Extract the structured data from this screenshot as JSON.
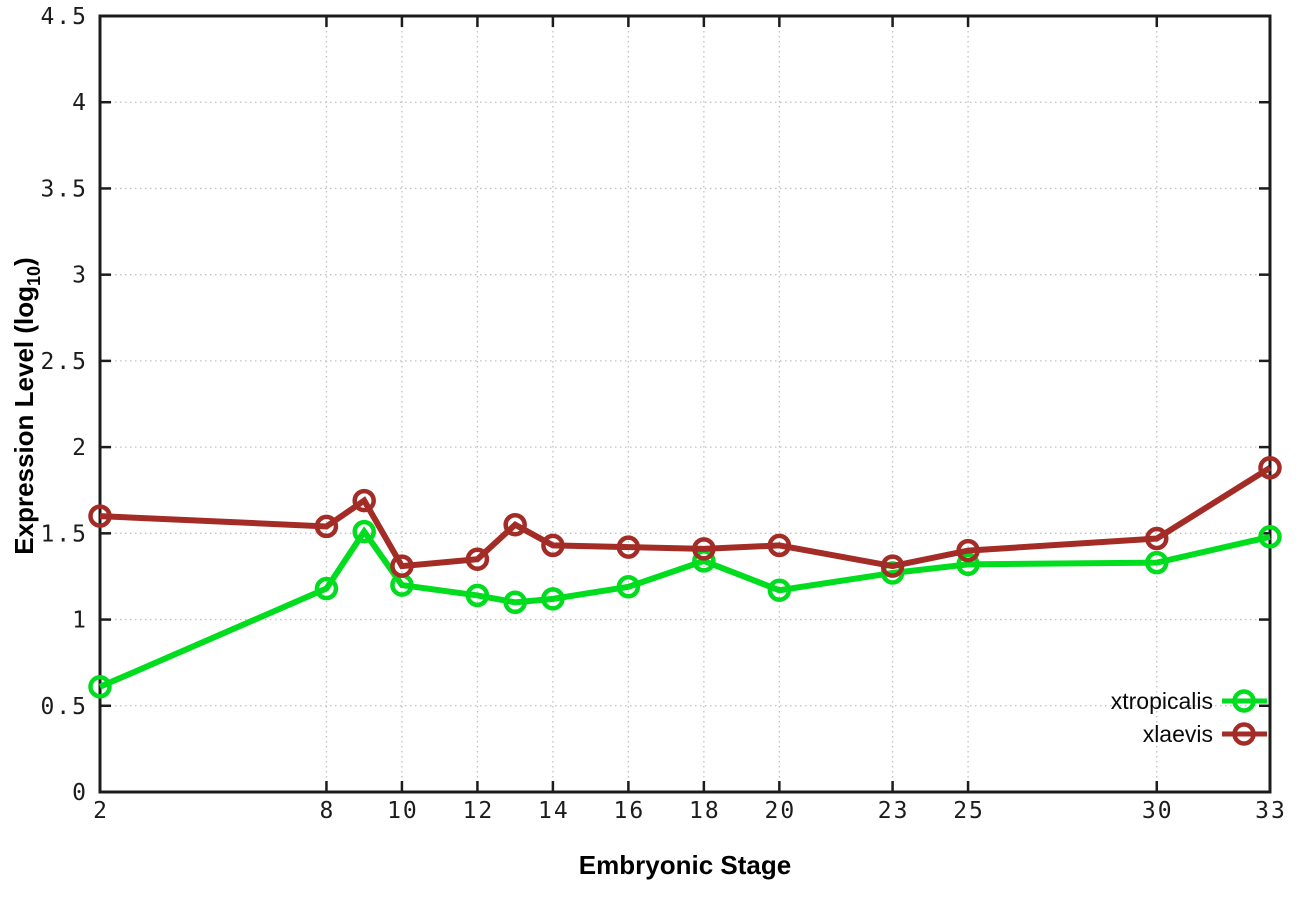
{
  "figure": {
    "background": "#ffffff",
    "axis_color": "#1c1c1c",
    "grid_color": "#c0c0c0",
    "xlabel": "Embryonic Stage",
    "ylabel": {
      "main": "Expression Level (log",
      "sub": "10",
      "suffix": ")"
    }
  },
  "chart_data": {
    "type": "line",
    "title": "",
    "xlabel": "Embryonic Stage",
    "ylabel": "Expression Level (log10)",
    "x": [
      2,
      8,
      9,
      10,
      12,
      13,
      14,
      16,
      18,
      20,
      23,
      25,
      30,
      33
    ],
    "xlim": [
      2,
      33
    ],
    "ylim": [
      0,
      4.5
    ],
    "xtick_values": [
      2,
      8,
      10,
      12,
      14,
      16,
      18,
      20,
      23,
      25,
      30,
      33
    ],
    "xtick_labels": [
      "2",
      "8",
      "10",
      "12",
      "14",
      "16",
      "18",
      "20",
      "23",
      "25",
      "30",
      "33"
    ],
    "ytick_values": [
      0,
      0.5,
      1,
      1.5,
      2,
      2.5,
      3,
      3.5,
      4,
      4.5
    ],
    "ytick_labels": [
      "0",
      "0.5",
      "1",
      "1.5",
      "2",
      "2.5",
      "3",
      "3.5",
      "4",
      "4.5"
    ],
    "grid": true,
    "marker": "open-circle",
    "legend_position": "bottom-right",
    "series": [
      {
        "name": "xtropicalis",
        "color": "#00dc1e",
        "values": [
          0.61,
          1.18,
          1.51,
          1.2,
          1.14,
          1.1,
          1.12,
          1.19,
          1.34,
          1.17,
          1.27,
          1.32,
          1.33,
          1.48
        ]
      },
      {
        "name": "xlaevis",
        "color": "#a32c26",
        "values": [
          1.6,
          1.54,
          1.69,
          1.31,
          1.35,
          1.55,
          1.43,
          1.42,
          1.41,
          1.43,
          1.31,
          1.4,
          1.47,
          1.88
        ]
      }
    ]
  }
}
